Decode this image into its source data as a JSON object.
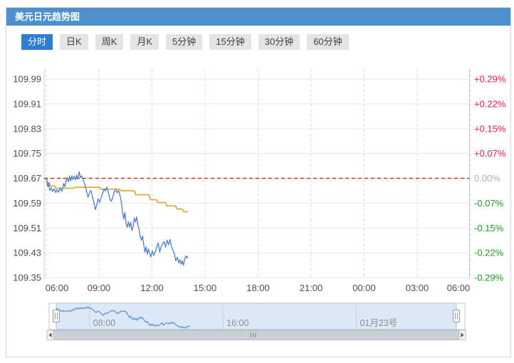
{
  "panel": {
    "title": "美元日元趋势图"
  },
  "tabs": [
    {
      "label": "分时",
      "active": true
    },
    {
      "label": "日K",
      "active": false
    },
    {
      "label": "周K",
      "active": false
    },
    {
      "label": "月K",
      "active": false
    },
    {
      "label": "5分钟",
      "active": false
    },
    {
      "label": "15分钟",
      "active": false
    },
    {
      "label": "30分钟",
      "active": false
    },
    {
      "label": "60分钟",
      "active": false
    }
  ],
  "colors": {
    "header_bg": "#4e90ce",
    "active_tab_bg": "#2d7ed3",
    "price_line": "#4a80cc",
    "average_line": "#d9a62e",
    "baseline_red": "#e00000",
    "pct_up": "#ee1a49",
    "pct_down": "#1fa11f",
    "pct_zero": "#b0b0b0",
    "axis_text": "#4d4d4d",
    "navigator_fill": "#dbe8f7",
    "navigator_line": "#5688c7",
    "scrollbar_track": "#cbd0d6"
  },
  "icons": {
    "scrollbar_left": "left-arrow",
    "scrollbar_right": "right-arrow",
    "scrollbar_grip": "grip-bars",
    "navigator_handle": "drag-handle"
  },
  "chart_data": {
    "type": "line",
    "title": "美元日元趋势图",
    "x_axis": {
      "labels": [
        "06:00",
        "09:00",
        "12:00",
        "15:00",
        "18:00",
        "21:00",
        "00:00",
        "03:00",
        "06:00"
      ],
      "range_minutes": [
        0,
        1440
      ],
      "minutes_per_tick": 180
    },
    "y_axis_left": {
      "ticks": [
        "109.99",
        "109.91",
        "109.83",
        "109.75",
        "109.67",
        "109.59",
        "109.51",
        "109.43",
        "109.35"
      ],
      "step": 0.08
    },
    "y_axis_right": {
      "ticks": [
        "+0.29%",
        "+0.22%",
        "+0.15%",
        "+0.07%",
        "0.00%",
        "-0.07%",
        "-0.15%",
        "-0.22%",
        "-0.29%"
      ]
    },
    "baseline": {
      "value": 109.67,
      "label": "0.00%"
    },
    "grid": {
      "horizontal": "solid",
      "vertical": "dashed"
    },
    "series": [
      {
        "name": "price",
        "color": "#4a80cc",
        "width": 1.3,
        "points": [
          [
            0,
            109.665
          ],
          [
            3,
            109.669
          ],
          [
            6,
            109.643
          ],
          [
            9,
            109.654
          ],
          [
            13,
            109.631
          ],
          [
            18,
            109.639
          ],
          [
            23,
            109.627
          ],
          [
            28,
            109.636
          ],
          [
            33,
            109.624
          ],
          [
            38,
            109.633
          ],
          [
            43,
            109.625
          ],
          [
            48,
            109.639
          ],
          [
            54,
            109.628
          ],
          [
            60,
            109.653
          ],
          [
            64,
            109.643
          ],
          [
            68,
            109.659
          ],
          [
            72,
            109.672
          ],
          [
            76,
            109.658
          ],
          [
            80,
            109.677
          ],
          [
            84,
            109.661
          ],
          [
            88,
            109.678
          ],
          [
            92,
            109.666
          ],
          [
            96,
            109.677
          ],
          [
            100,
            109.665
          ],
          [
            104,
            109.68
          ],
          [
            108,
            109.668
          ],
          [
            113,
            109.691
          ],
          [
            117,
            109.672
          ],
          [
            121,
            109.678
          ],
          [
            126,
            109.665
          ],
          [
            132,
            109.652
          ],
          [
            138,
            109.627
          ],
          [
            143,
            109.609
          ],
          [
            148,
            109.624
          ],
          [
            153,
            109.631
          ],
          [
            158,
            109.609
          ],
          [
            163,
            109.592
          ],
          [
            168,
            109.569
          ],
          [
            172,
            109.582
          ],
          [
            177,
            109.604
          ],
          [
            182,
            109.592
          ],
          [
            187,
            109.608
          ],
          [
            192,
            109.62
          ],
          [
            197,
            109.636
          ],
          [
            202,
            109.629
          ],
          [
            207,
            109.642
          ],
          [
            212,
            109.624
          ],
          [
            217,
            109.604
          ],
          [
            222,
            109.596
          ],
          [
            227,
            109.608
          ],
          [
            232,
            109.629
          ],
          [
            237,
            109.632
          ],
          [
            242,
            109.624
          ],
          [
            247,
            109.631
          ],
          [
            252,
            109.612
          ],
          [
            256,
            109.592
          ],
          [
            260,
            109.562
          ],
          [
            264,
            109.539
          ],
          [
            268,
            109.56
          ],
          [
            272,
            109.524
          ],
          [
            276,
            109.512
          ],
          [
            280,
            109.53
          ],
          [
            284,
            109.512
          ],
          [
            288,
            109.528
          ],
          [
            292,
            109.501
          ],
          [
            296,
            109.516
          ],
          [
            300,
            109.542
          ],
          [
            304,
            109.529
          ],
          [
            308,
            109.546
          ],
          [
            312,
            109.52
          ],
          [
            316,
            109.507
          ],
          [
            320,
            109.484
          ],
          [
            324,
            109.47
          ],
          [
            328,
            109.484
          ],
          [
            332,
            109.456
          ],
          [
            336,
            109.432
          ],
          [
            340,
            109.449
          ],
          [
            344,
            109.425
          ],
          [
            348,
            109.443
          ],
          [
            352,
            109.428
          ],
          [
            356,
            109.416
          ],
          [
            361,
            109.436
          ],
          [
            366,
            109.421
          ],
          [
            371,
            109.433
          ],
          [
            376,
            109.448
          ],
          [
            381,
            109.462
          ],
          [
            386,
            109.432
          ],
          [
            391,
            109.45
          ],
          [
            396,
            109.459
          ],
          [
            401,
            109.466
          ],
          [
            406,
            109.448
          ],
          [
            411,
            109.471
          ],
          [
            416,
            109.455
          ],
          [
            421,
            109.473
          ],
          [
            426,
            109.45
          ],
          [
            431,
            109.439
          ],
          [
            436,
            109.425
          ],
          [
            441,
            109.404
          ],
          [
            446,
            109.416
          ],
          [
            451,
            109.397
          ],
          [
            455,
            109.408
          ],
          [
            459,
            109.393
          ],
          [
            463,
            109.404
          ],
          [
            467,
            109.39
          ],
          [
            471,
            109.409
          ],
          [
            475,
            109.42
          ],
          [
            479,
            109.413
          ],
          [
            482,
            109.418
          ]
        ]
      },
      {
        "name": "average",
        "color": "#d9a62e",
        "width": 1.6,
        "points": [
          [
            0,
            109.656
          ],
          [
            12,
            109.656
          ],
          [
            14,
            109.645
          ],
          [
            30,
            109.645
          ],
          [
            34,
            109.638
          ],
          [
            95,
            109.638
          ],
          [
            100,
            109.641
          ],
          [
            182,
            109.641
          ],
          [
            186,
            109.635
          ],
          [
            250,
            109.635
          ],
          [
            255,
            109.63
          ],
          [
            300,
            109.63
          ],
          [
            305,
            109.617
          ],
          [
            350,
            109.617
          ],
          [
            355,
            109.601
          ],
          [
            375,
            109.601
          ],
          [
            380,
            109.592
          ],
          [
            405,
            109.592
          ],
          [
            410,
            109.581
          ],
          [
            440,
            109.581
          ],
          [
            445,
            109.571
          ],
          [
            463,
            109.571
          ],
          [
            468,
            109.562
          ],
          [
            482,
            109.562
          ]
        ]
      }
    ],
    "navigator": {
      "labels": [
        {
          "text": "08:00",
          "t": 120
        },
        {
          "text": "16:00",
          "t": 600
        },
        {
          "text": "01月23号",
          "t": 1080
        }
      ]
    }
  }
}
